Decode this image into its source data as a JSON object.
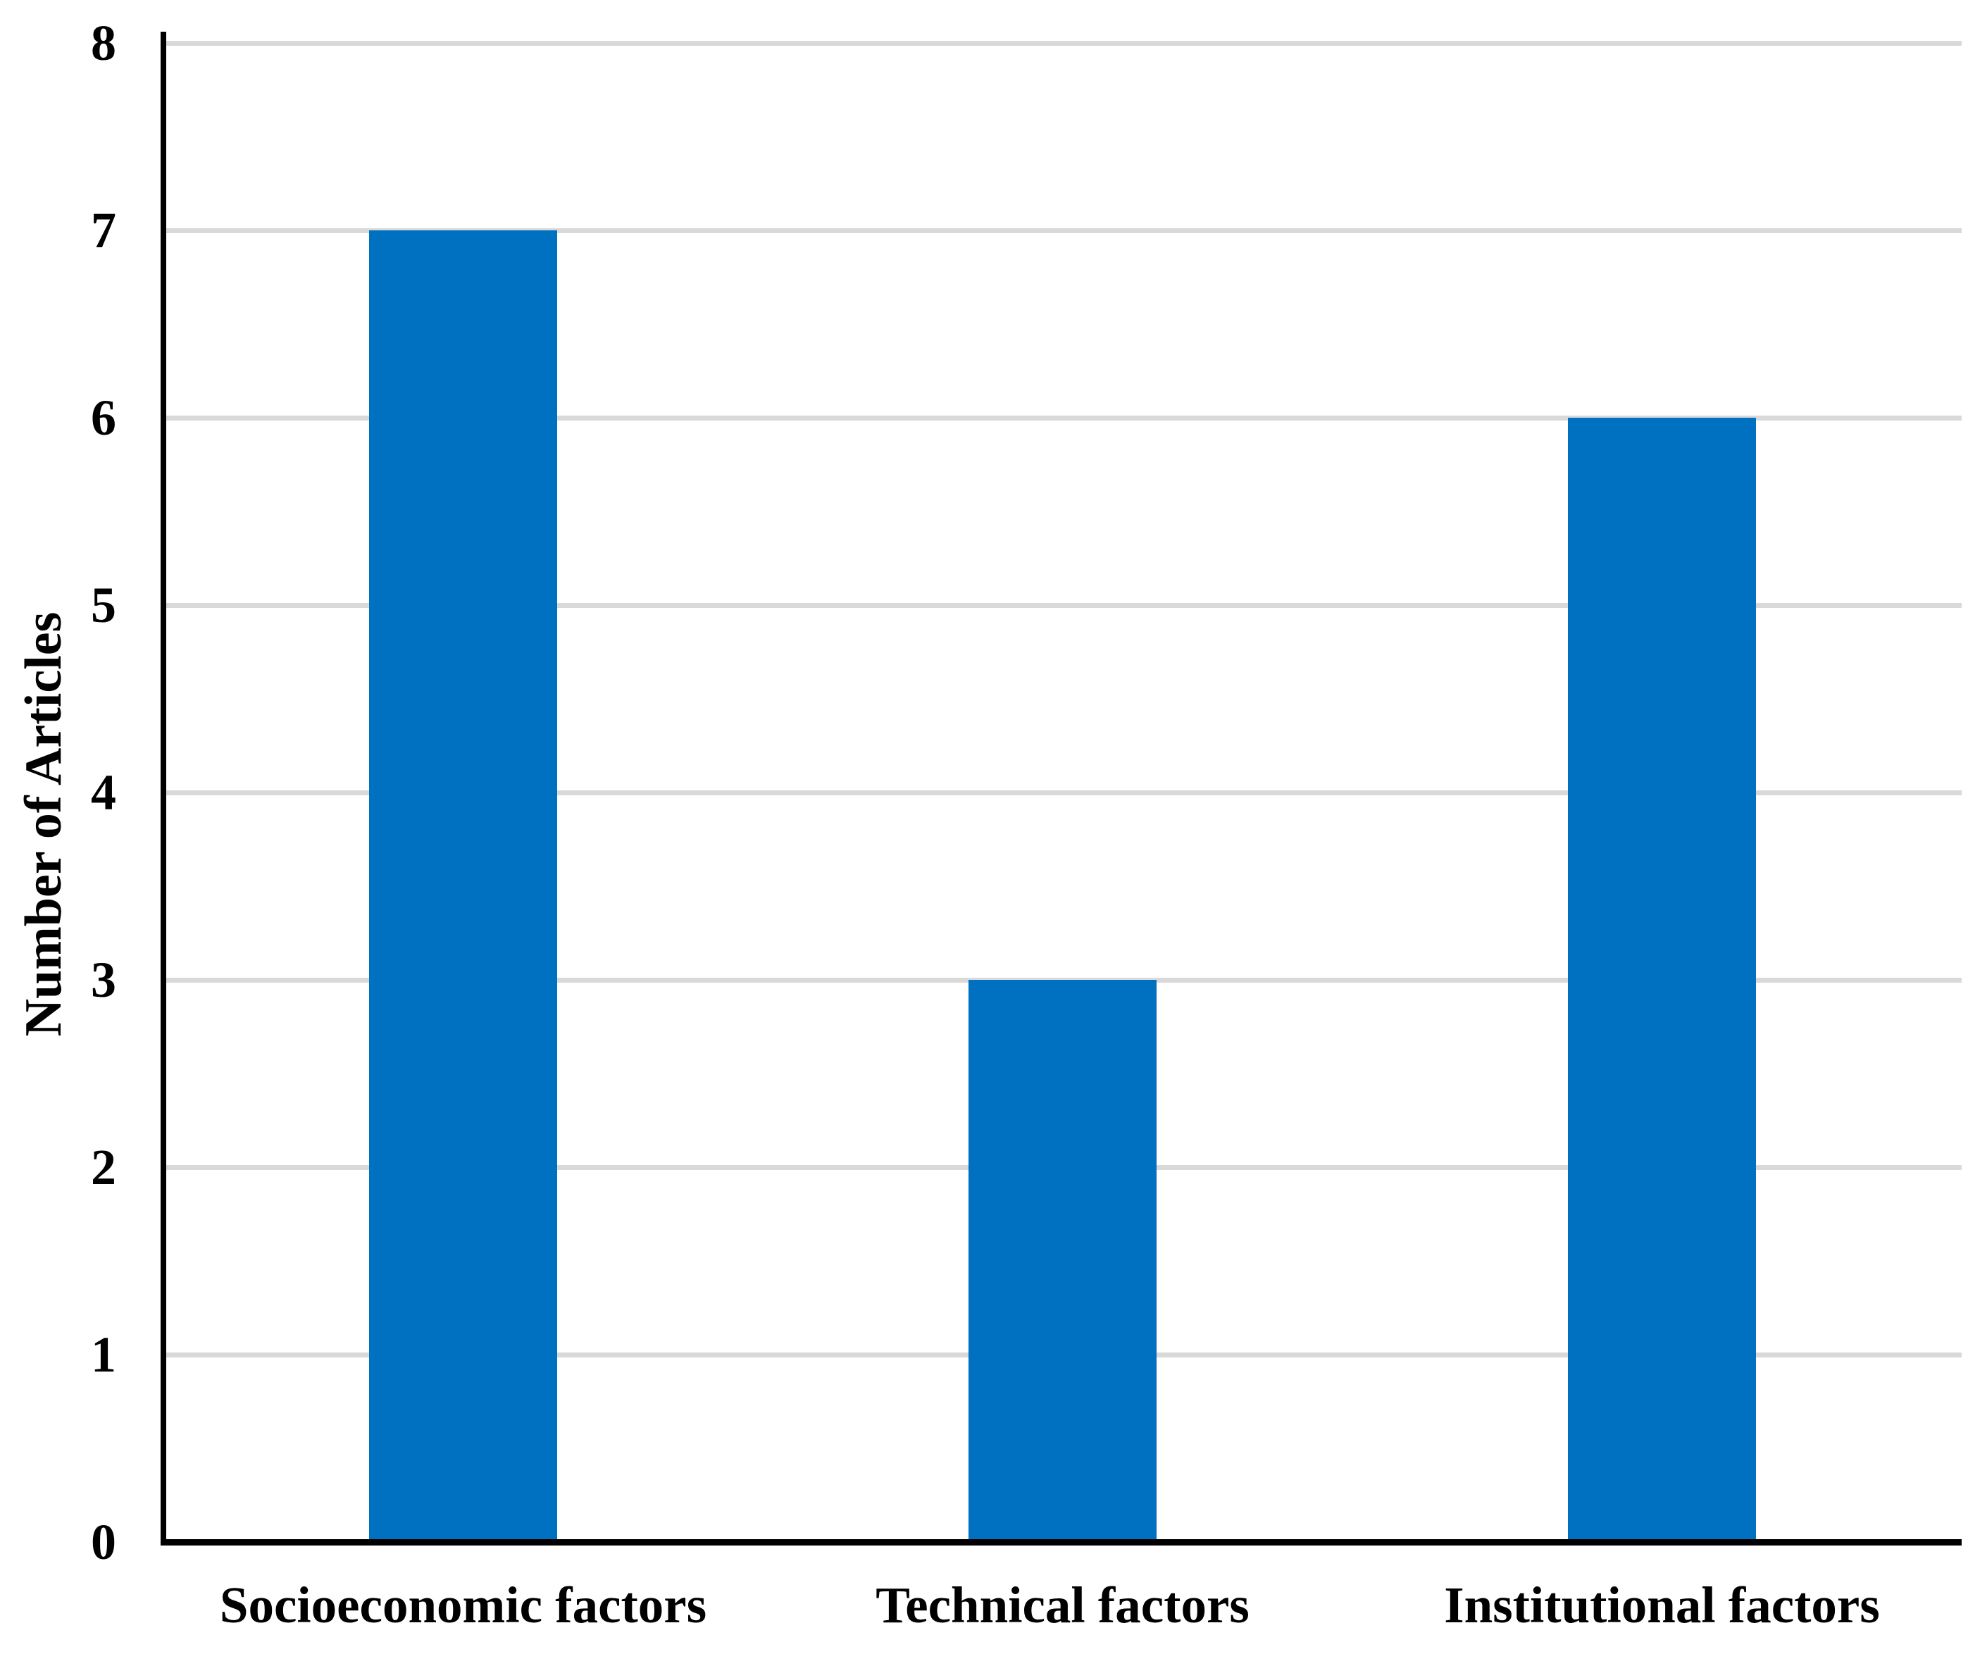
{
  "chart_data": {
    "type": "bar",
    "title": "",
    "categories": [
      "Socioeconomic factors",
      "Technical factors",
      "Institutional factors"
    ],
    "values": [
      7,
      3,
      6
    ],
    "xlabel": "",
    "ylabel": "Number of Articles",
    "ylim": [
      0,
      8
    ],
    "ytick_step": 1,
    "ytick_labels": [
      "0",
      "1",
      "2",
      "3",
      "4",
      "5",
      "6",
      "7",
      "8"
    ],
    "grid": "horizontal",
    "legend": "none",
    "colors": {
      "bar_fill": "#0070C0",
      "gridline": "#D9D9D9",
      "axis_line": "#000000",
      "text": "#000000",
      "background": "#FFFFFF"
    }
  }
}
